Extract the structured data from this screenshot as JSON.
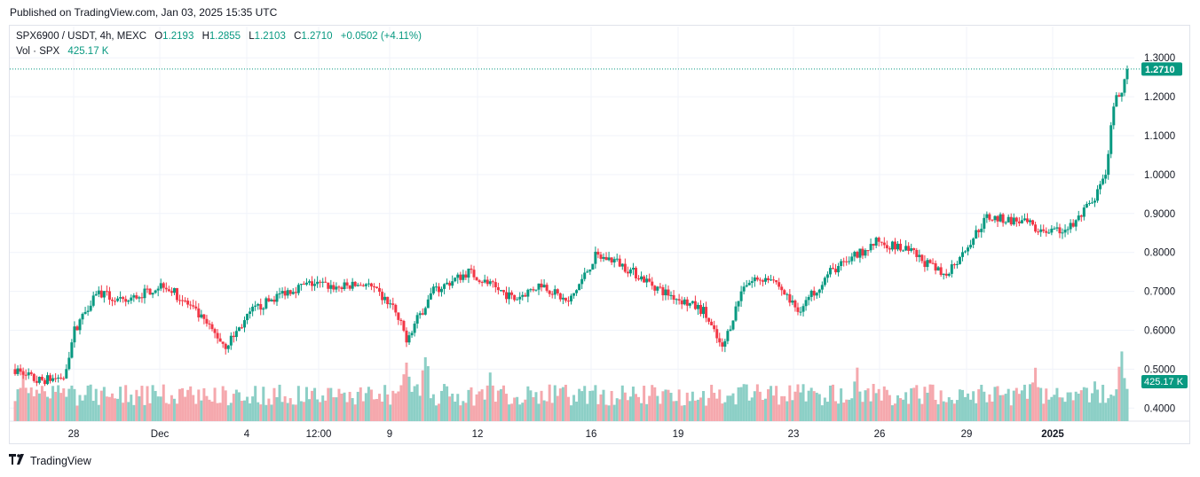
{
  "published": "Published on TradingView.com, Jan 03, 2025 15:35 UTC",
  "legend": {
    "symbol": "SPX6900 / USDT, 4h, MEXC",
    "open_label": "O",
    "open": "1.2193",
    "high_label": "H",
    "high": "1.2855",
    "low_label": "L",
    "low": "1.2103",
    "close_label": "C",
    "close": "1.2710",
    "change": "+0.0502 (+4.11%)",
    "vol_label": "Vol · SPX",
    "vol_value": "425.17 K"
  },
  "footer": {
    "brand": "TradingView",
    "logo_icon": "tradingview-logo-icon"
  },
  "colors": {
    "up": "#089981",
    "down": "#f23645",
    "vol_up": "#8ccfc6",
    "vol_down": "#f5a8ad",
    "grid": "#f0f3fa"
  },
  "chart_data": {
    "type": "candlestick",
    "y_ticks": [
      "1.3000",
      "1.2000",
      "1.1000",
      "1.0000",
      "0.9000",
      "0.8000",
      "0.7000",
      "0.6000",
      "0.5000",
      "0.4000"
    ],
    "y_range": [
      0.37,
      1.32
    ],
    "x_ticks": [
      "28",
      "Dec",
      "4",
      "12:00",
      "9",
      "12",
      "16",
      "19",
      "23",
      "26",
      "29",
      "2025"
    ],
    "last_price": "1.2710",
    "last_volume": "425.17 K",
    "keypoints": [
      [
        0,
        0.5
      ],
      [
        8,
        0.47
      ],
      [
        18,
        0.48
      ],
      [
        22,
        0.6
      ],
      [
        30,
        0.7
      ],
      [
        40,
        0.67
      ],
      [
        55,
        0.72
      ],
      [
        65,
        0.66
      ],
      [
        78,
        0.56
      ],
      [
        88,
        0.65
      ],
      [
        100,
        0.7
      ],
      [
        110,
        0.72
      ],
      [
        120,
        0.71
      ],
      [
        130,
        0.72
      ],
      [
        140,
        0.66
      ],
      [
        145,
        0.58
      ],
      [
        155,
        0.7
      ],
      [
        168,
        0.75
      ],
      [
        185,
        0.68
      ],
      [
        195,
        0.72
      ],
      [
        205,
        0.67
      ],
      [
        215,
        0.79
      ],
      [
        222,
        0.78
      ],
      [
        240,
        0.7
      ],
      [
        255,
        0.65
      ],
      [
        262,
        0.55
      ],
      [
        270,
        0.72
      ],
      [
        280,
        0.74
      ],
      [
        290,
        0.65
      ],
      [
        302,
        0.75
      ],
      [
        320,
        0.83
      ],
      [
        332,
        0.8
      ],
      [
        344,
        0.74
      ],
      [
        350,
        0.79
      ],
      [
        360,
        0.89
      ],
      [
        372,
        0.88
      ],
      [
        385,
        0.85
      ],
      [
        392,
        0.87
      ],
      [
        400,
        0.94
      ],
      [
        404,
        0.99
      ],
      [
        407,
        1.18
      ],
      [
        410,
        1.22
      ],
      [
        412,
        1.27
      ]
    ],
    "volume_spikes": [
      [
        3,
        0.9
      ],
      [
        20,
        0.7
      ],
      [
        145,
        1.3
      ],
      [
        152,
        1.3
      ],
      [
        176,
        0.85
      ],
      [
        275,
        0.7
      ],
      [
        312,
        0.95
      ],
      [
        350,
        0.55
      ],
      [
        378,
        1.1
      ],
      [
        400,
        0.75
      ],
      [
        410,
        1.3
      ]
    ]
  }
}
